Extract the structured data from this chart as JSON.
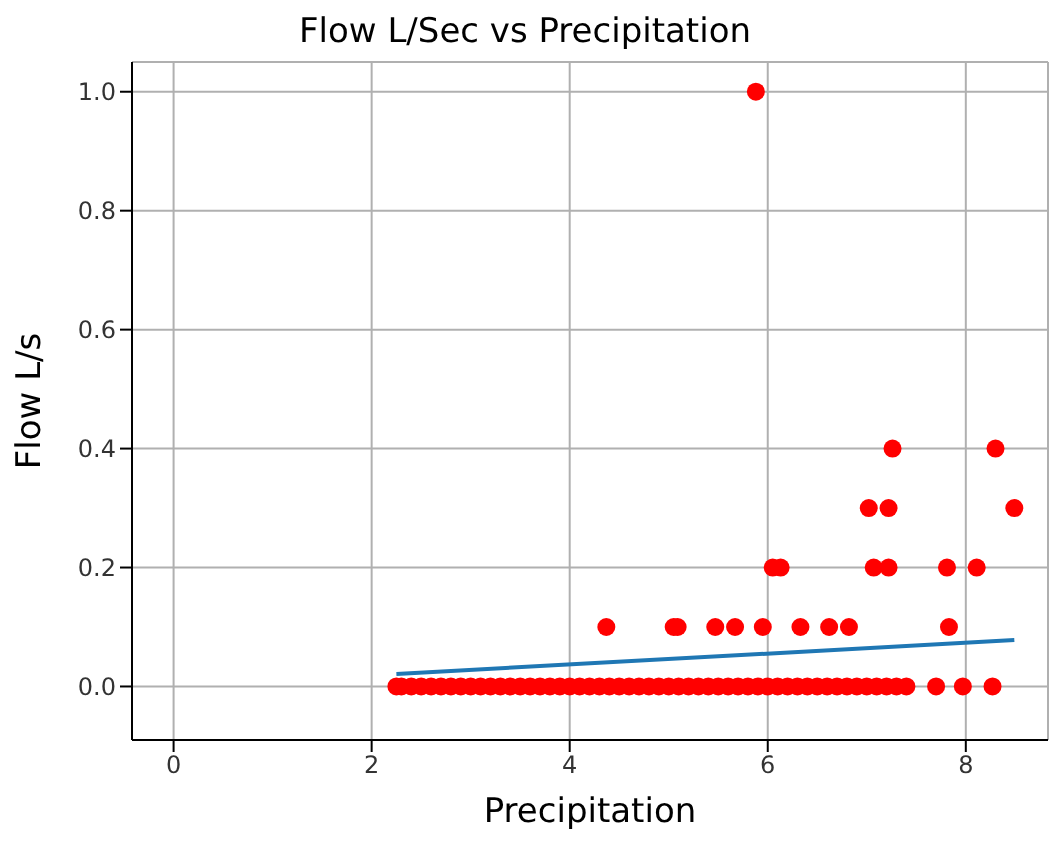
{
  "chart_data": {
    "type": "scatter",
    "title": "Flow L/Sec vs Precipitation",
    "xlabel": "Precipitation",
    "ylabel": "Flow L/s",
    "xlim": [
      -0.42,
      8.83
    ],
    "ylim": [
      -0.09,
      1.05
    ],
    "xticks": [
      0,
      2,
      4,
      6,
      8
    ],
    "yticks": [
      {
        "value": 0,
        "label": "0.0"
      },
      {
        "value": 0.2,
        "label": "0.2"
      },
      {
        "value": 0.4,
        "label": "0.4"
      },
      {
        "value": 0.6,
        "label": "0.6"
      },
      {
        "value": 0.8,
        "label": "0.8"
      },
      {
        "value": 1,
        "label": "1.0"
      }
    ],
    "grid": true,
    "series": [
      {
        "marker": "circle",
        "color": "#ff0000",
        "x": [
          2.25,
          2.3,
          2.4,
          2.5,
          2.6,
          2.7,
          2.8,
          2.9,
          3.0,
          3.1,
          3.2,
          3.3,
          3.4,
          3.5,
          3.6,
          3.7,
          3.8,
          3.9,
          4.0,
          4.1,
          4.2,
          4.3,
          4.4,
          4.5,
          4.6,
          4.7,
          4.8,
          4.9,
          5.0,
          5.1,
          5.2,
          5.3,
          5.4,
          5.5,
          5.6,
          5.7,
          5.8,
          5.9,
          6.0,
          6.1,
          6.2,
          6.3,
          6.4,
          6.5,
          6.6,
          6.7,
          6.8,
          6.9,
          7.0,
          7.1,
          7.2,
          7.3,
          7.4,
          7.7,
          7.97,
          8.27,
          4.37,
          5.05,
          5.09,
          5.47,
          5.67,
          5.95,
          6.33,
          6.62,
          6.82,
          7.83,
          6.05,
          6.13,
          7.07,
          7.22,
          7.81,
          8.11,
          7.02,
          7.22,
          8.49,
          7.26,
          8.3,
          5.88
        ],
        "values": [
          0,
          0,
          0,
          0,
          0,
          0,
          0,
          0,
          0,
          0,
          0,
          0,
          0,
          0,
          0,
          0,
          0,
          0,
          0,
          0,
          0,
          0,
          0,
          0,
          0,
          0,
          0,
          0,
          0,
          0,
          0,
          0,
          0,
          0,
          0,
          0,
          0,
          0,
          0,
          0,
          0,
          0,
          0,
          0,
          0,
          0,
          0,
          0,
          0,
          0,
          0,
          0,
          0,
          0,
          0,
          0,
          0.1,
          0.1,
          0.1,
          0.1,
          0.1,
          0.1,
          0.1,
          0.1,
          0.1,
          0.1,
          0.2,
          0.2,
          0.2,
          0.2,
          0.2,
          0.2,
          0.3,
          0.3,
          0.3,
          0.4,
          0.4,
          1.0
        ]
      },
      {
        "type": "line",
        "color": "#1f77b4",
        "x": [
          2.25,
          8.49
        ],
        "values": [
          0.021,
          0.078
        ]
      }
    ]
  }
}
